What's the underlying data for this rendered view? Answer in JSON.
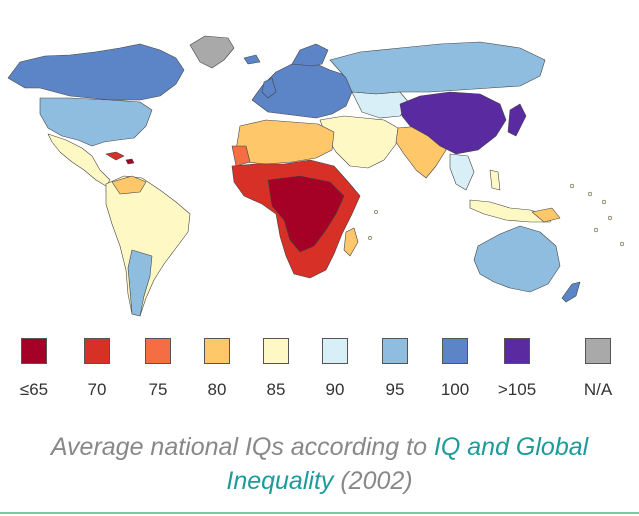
{
  "map": {
    "description_name": "world-choropleth-map",
    "colors": {
      "le65": "#a50026",
      "c70": "#d73027",
      "c75": "#f46d43",
      "c80": "#fdc76a",
      "c85": "#fef9c4",
      "c90": "#d9eff8",
      "c95": "#8fbde0",
      "c100": "#5b85c6",
      "gt105": "#5a2aa0",
      "na": "#a9a9a9"
    }
  },
  "legend": {
    "items": [
      {
        "label": "≤65",
        "color": "#a50026"
      },
      {
        "label": "70",
        "color": "#d73027"
      },
      {
        "label": "75",
        "color": "#f46d43"
      },
      {
        "label": "80",
        "color": "#fdc76a"
      },
      {
        "label": "85",
        "color": "#fef9c4"
      },
      {
        "label": "90",
        "color": "#d9eff8"
      },
      {
        "label": "95",
        "color": "#8fbde0"
      },
      {
        "label": "100",
        "color": "#5b85c6"
      },
      {
        "label": ">105",
        "color": "#5a2aa0"
      },
      {
        "label": "N/A",
        "color": "#a9a9a9"
      }
    ]
  },
  "caption": {
    "prefix": "Average national IQs according to ",
    "link1": "IQ and Global",
    "link2": "Inequality",
    "suffix": " (2002)"
  }
}
